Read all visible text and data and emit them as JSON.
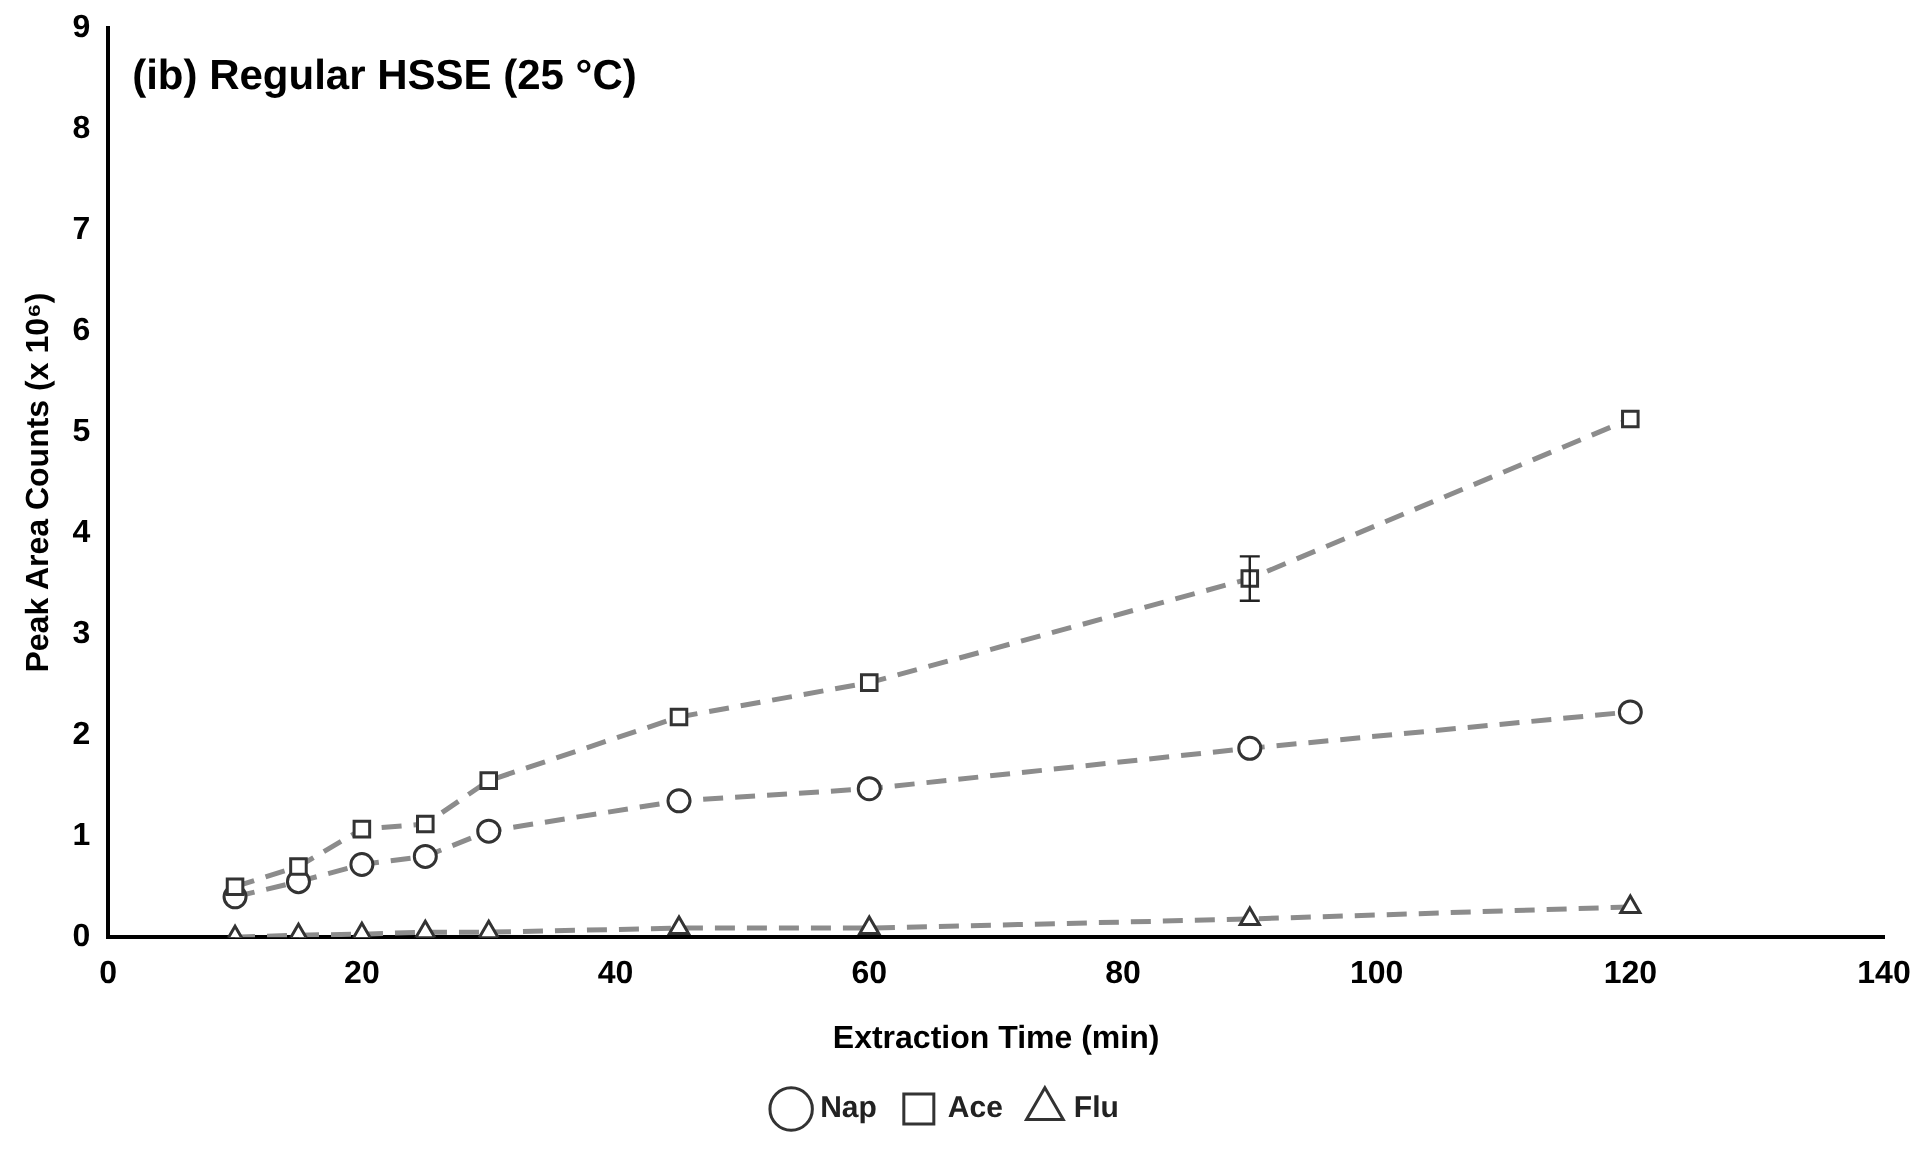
{
  "chart_data": {
    "type": "line",
    "title": "(ib) Regular HSSE (25 °C)",
    "xlabel": "Extraction Time (min)",
    "ylabel": "Peak Area Counts (x 10⁶)",
    "x": [
      10,
      15,
      20,
      25,
      30,
      45,
      60,
      90,
      120
    ],
    "xlim": [
      0,
      140
    ],
    "xticks": [
      0,
      20,
      40,
      60,
      80,
      100,
      120,
      140
    ],
    "ylim": [
      0,
      9
    ],
    "yticks": [
      0,
      1,
      2,
      3,
      4,
      5,
      6,
      7,
      8,
      9
    ],
    "grid": false,
    "legend": "bottom",
    "line_style": "dashed",
    "series": [
      {
        "name": "Nap",
        "color": "#8c8c8c",
        "marker": "circle",
        "values": [
          0.4,
          0.55,
          0.72,
          0.8,
          1.05,
          1.35,
          1.47,
          1.87,
          2.23
        ]
      },
      {
        "name": "Ace",
        "color": "#8c8c8c",
        "marker": "square",
        "values": [
          0.5,
          0.7,
          1.07,
          1.12,
          1.55,
          2.18,
          2.52,
          3.55,
          5.13
        ],
        "errors": [
          null,
          null,
          null,
          null,
          null,
          null,
          null,
          0.22,
          null
        ]
      },
      {
        "name": "Flu",
        "color": "#8c8c8c",
        "marker": "triangle",
        "values": [
          0.0,
          0.02,
          0.03,
          0.05,
          0.05,
          0.09,
          0.09,
          0.18,
          0.3
        ]
      }
    ]
  }
}
